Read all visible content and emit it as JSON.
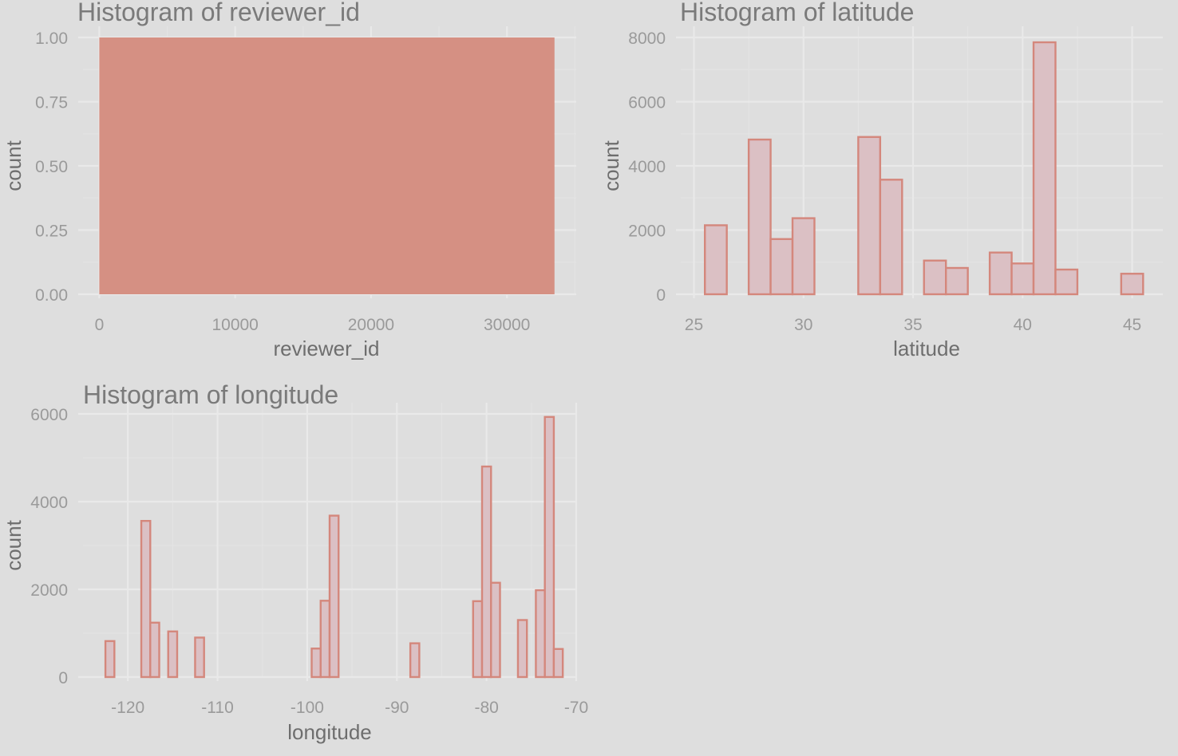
{
  "colors": {
    "background": "#dedede",
    "filled_bar": "#d59083",
    "outline_bar_fill": "#dbc0c4",
    "outline_bar_stroke": "#d4877c"
  },
  "chart_data": [
    {
      "type": "bar",
      "title": "Histogram of reviewer_id",
      "xlabel": "reviewer_id",
      "ylabel": "count",
      "style": "filled",
      "xlim": [
        -1200,
        35100
      ],
      "ylim": [
        0,
        1.0
      ],
      "x_ticks": [
        0,
        10000,
        20000,
        30000
      ],
      "x_tick_labels": [
        "0",
        "10000",
        "20000",
        "30000"
      ],
      "y_ticks": [
        0,
        0.25,
        0.5,
        0.75,
        1.0
      ],
      "y_tick_labels": [
        "0.00",
        "0.25",
        "0.50",
        "0.75",
        "1.00"
      ],
      "x_range_filled": [
        0,
        33500
      ],
      "values": [
        1
      ]
    },
    {
      "type": "bar",
      "title": "Histogram of latitude",
      "xlabel": "latitude",
      "ylabel": "count",
      "style": "outlined",
      "xlim": [
        24.4,
        46.4
      ],
      "ylim": [
        0,
        8000
      ],
      "x_ticks": [
        25,
        30,
        35,
        40,
        45
      ],
      "x_tick_labels": [
        "25",
        "30",
        "35",
        "40",
        "45"
      ],
      "y_ticks": [
        0,
        2000,
        4000,
        6000,
        8000
      ],
      "y_tick_labels": [
        "0",
        "2000",
        "4000",
        "6000",
        "8000"
      ],
      "bin_start": 25.5,
      "bin_width": 1.0,
      "values": [
        2150,
        0,
        4820,
        1720,
        2370,
        0,
        0,
        4900,
        3570,
        0,
        1050,
        820,
        0,
        1300,
        960,
        7850,
        770,
        0,
        0,
        640
      ]
    },
    {
      "type": "bar",
      "title": "Histogram of longitude",
      "xlabel": "longitude",
      "ylabel": "count",
      "style": "outlined",
      "xlim": [
        -125,
        -70
      ],
      "ylim": [
        0,
        6000
      ],
      "x_ticks": [
        -120,
        -110,
        -100,
        -90,
        -80,
        -70
      ],
      "x_tick_labels": [
        "-120",
        "-110",
        "-100",
        "-90",
        "-80",
        "-70"
      ],
      "y_ticks": [
        0,
        2000,
        4000,
        6000
      ],
      "y_tick_labels": [
        "0",
        "2000",
        "4000",
        "6000"
      ],
      "bin_start": -122.5,
      "bin_width": 1.0,
      "values": [
        820,
        0,
        0,
        0,
        3560,
        1240,
        0,
        1040,
        0,
        0,
        900,
        0,
        0,
        0,
        0,
        0,
        0,
        0,
        0,
        0,
        0,
        0,
        0,
        650,
        1740,
        3680,
        0,
        0,
        0,
        0,
        0,
        0,
        0,
        0,
        770,
        0,
        0,
        0,
        0,
        0,
        0,
        1730,
        4800,
        2150,
        0,
        0,
        1300,
        0,
        1980,
        5930,
        640
      ]
    }
  ]
}
